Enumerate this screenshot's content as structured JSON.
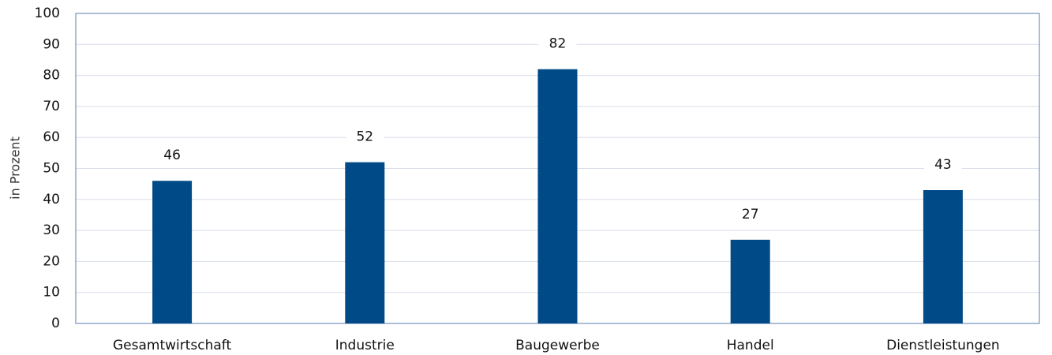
{
  "chart_data": {
    "type": "bar",
    "y_label": "in Prozent",
    "categories": [
      "Gesamtwirtschaft",
      "Industrie",
      "Baugewerbe",
      "Handel",
      "Dienstleistungen"
    ],
    "values": [
      46,
      52,
      82,
      27,
      43
    ],
    "color": "#004a87",
    "ylim": [
      0,
      100
    ],
    "yticks": [
      0,
      10,
      20,
      30,
      40,
      50,
      60,
      70,
      80,
      90,
      100
    ],
    "grid": true
  }
}
